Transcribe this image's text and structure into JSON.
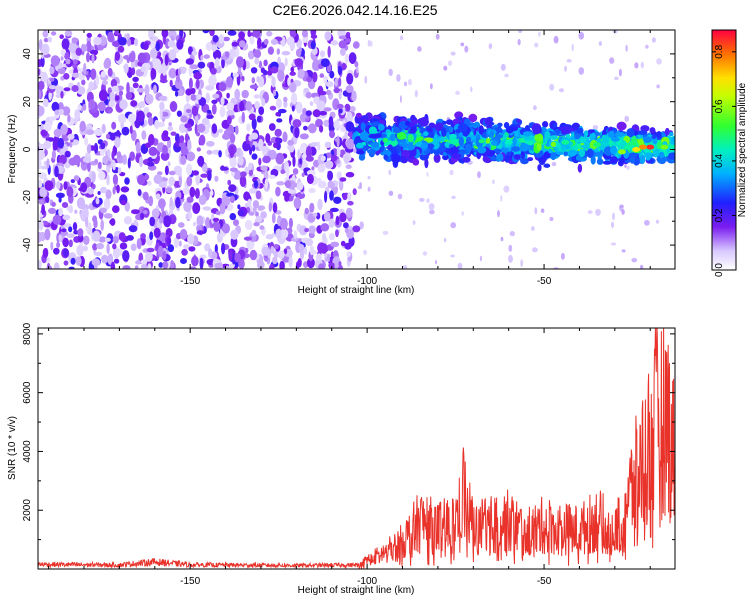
{
  "title": "C2E6.2026.042.14.16.E25",
  "chart_data": [
    {
      "type": "heatmap",
      "xlabel": "Height of straight line (km)",
      "ylabel": "Frequency (Hz)",
      "xlim": [
        -193,
        -13
      ],
      "ylim": [
        -50,
        50
      ],
      "xticks": [
        -150,
        -100,
        -50
      ],
      "yticks": [
        -40,
        -20,
        0,
        20,
        40
      ],
      "colorbar": {
        "label": "Normalized spectral amplitude",
        "range": [
          0,
          0.88
        ],
        "ticks": [
          0.0,
          0.2,
          0.4,
          0.6,
          0.8
        ]
      },
      "regions": [
        {
          "x_range": [
            -193,
            -103
          ],
          "freq_range": [
            -50,
            50
          ],
          "amplitude": "0.05-0.25 (broadband noise)"
        },
        {
          "x_range": [
            -103,
            -13
          ],
          "freq_center_start": 5,
          "freq_center_end": 1,
          "bandwidth": 10,
          "amplitude": "0.15-0.85 (narrow band, peak near -20 km)"
        }
      ],
      "grid": false
    },
    {
      "type": "line",
      "xlabel": "Height of straight line (km)",
      "ylabel": "SNR (10 * v/v)",
      "xlim": [
        -193,
        -13
      ],
      "ylim": [
        0,
        8200
      ],
      "xticks": [
        -150,
        -100,
        -50
      ],
      "yticks": [
        2000,
        4000,
        6000,
        8000
      ],
      "series": [
        {
          "color": "#e8322a",
          "x": [
            -193,
            -180,
            -170,
            -160,
            -150,
            -140,
            -130,
            -120,
            -110,
            -103,
            -100,
            -95,
            -90,
            -85,
            -80,
            -75,
            -73,
            -70,
            -65,
            -60,
            -55,
            -50,
            -45,
            -40,
            -35,
            -30,
            -25,
            -20,
            -18,
            -15,
            -13
          ],
          "y": [
            200,
            180,
            170,
            300,
            180,
            170,
            160,
            150,
            160,
            170,
            500,
            900,
            1500,
            2600,
            2200,
            2500,
            4400,
            2300,
            2400,
            2600,
            2000,
            2400,
            2200,
            2100,
            2700,
            2000,
            4500,
            7000,
            8200,
            8200,
            6000
          ]
        }
      ],
      "grid": false
    }
  ]
}
